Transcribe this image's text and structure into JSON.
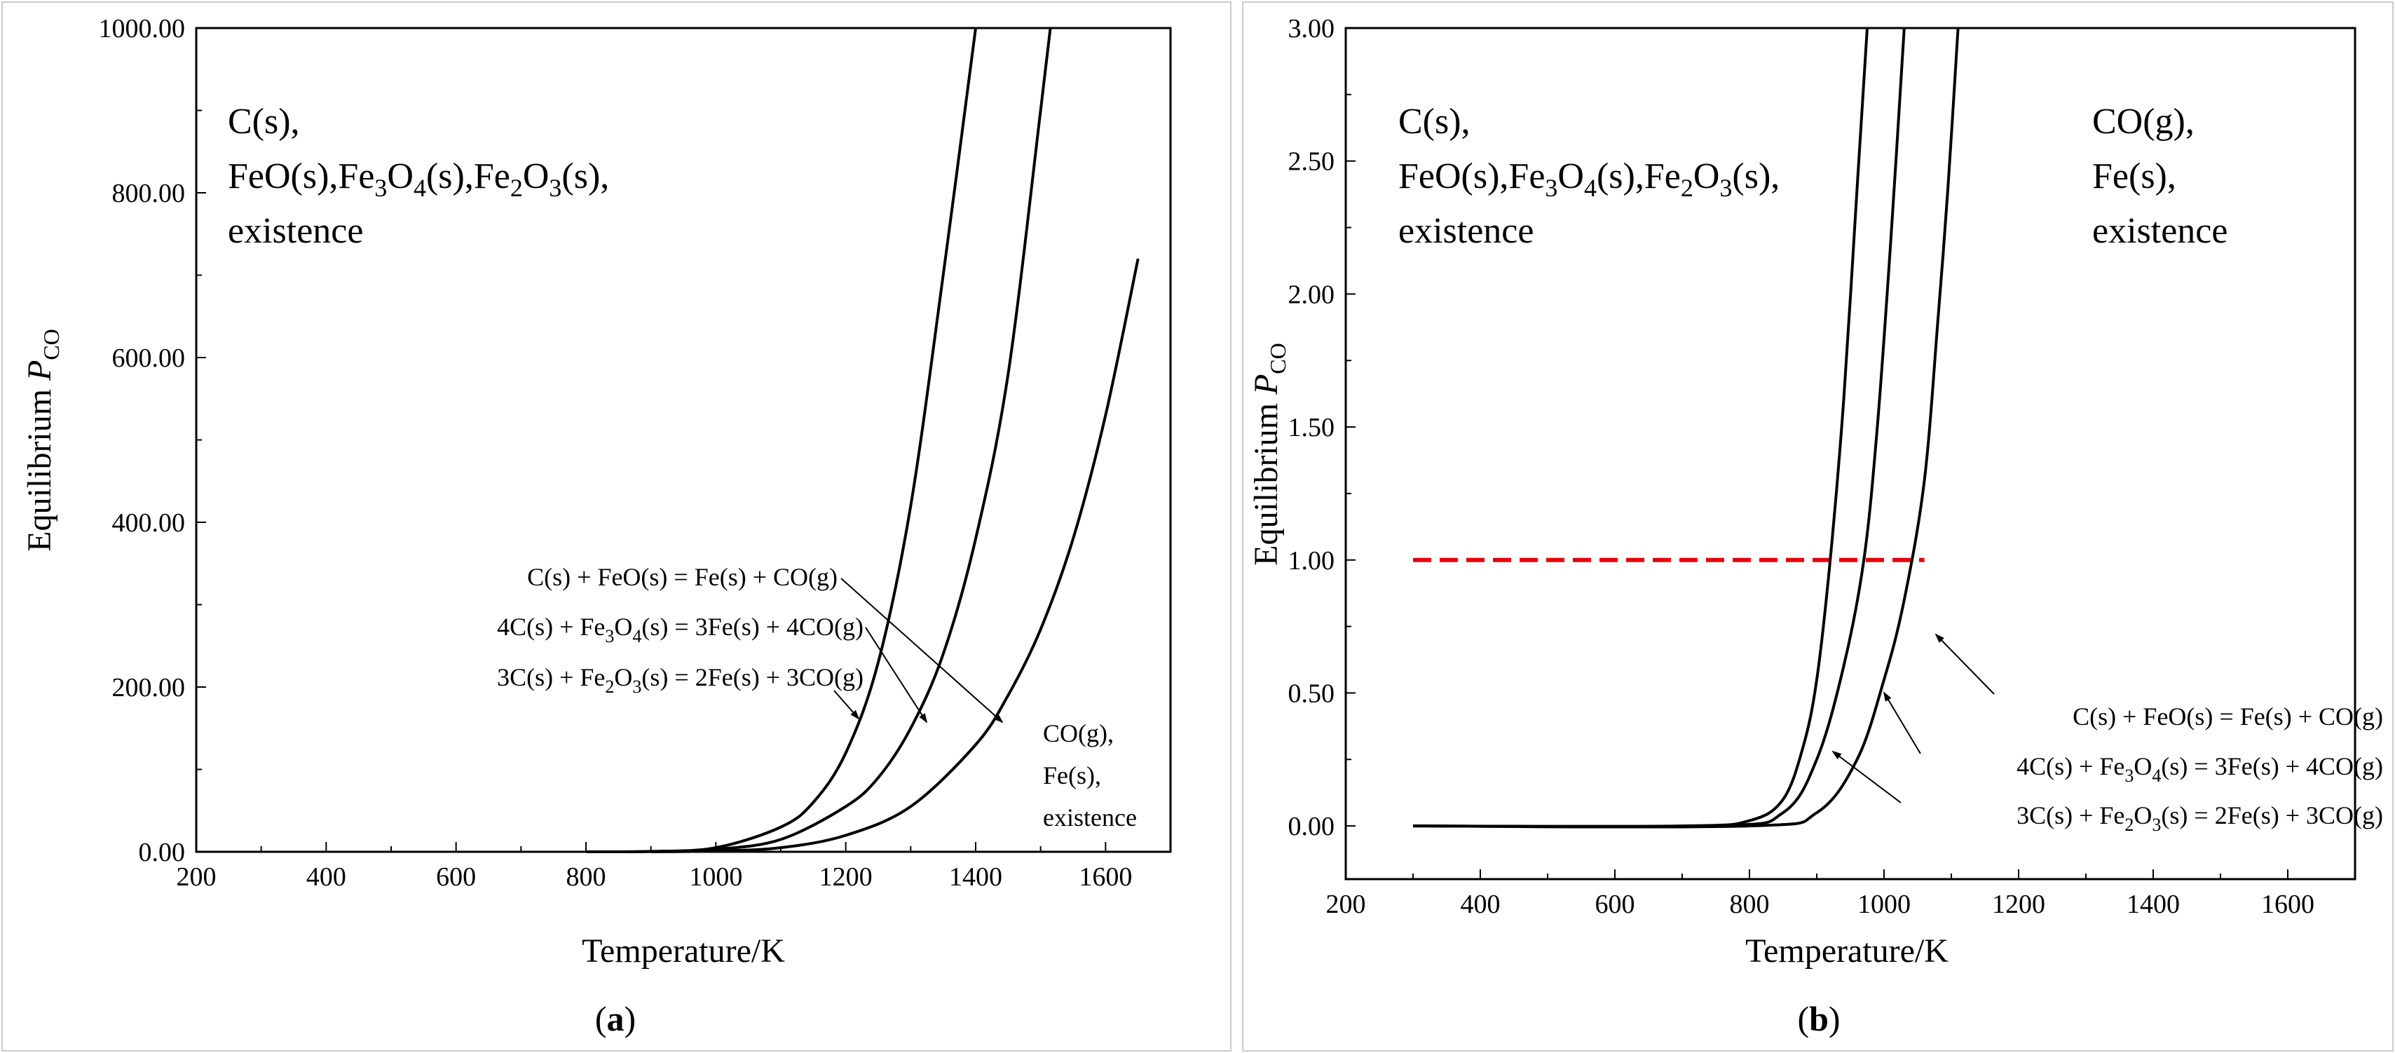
{
  "figure": {
    "panels": [
      {
        "id": "a",
        "caption": {
          "open": "(",
          "letter": "a",
          "close": ")"
        },
        "xlabel": "Temperature/K",
        "ylabel": {
          "prefix": "Equilibrium ",
          "var": "P",
          "sub": "CO"
        },
        "region_low": {
          "line1": "C(s),",
          "line2_parts": [
            "FeO(s),Fe",
            "3",
            "O",
            "4",
            "(s),Fe",
            "2",
            "O",
            "3",
            "(s),"
          ],
          "line3": "existence"
        },
        "region_high": {
          "line1": "CO(g),",
          "line2": "Fe(s),",
          "line3": "existence"
        },
        "equations": [
          {
            "parts": [
              "C(s) + FeO(s) = Fe(s) + CO(g)"
            ]
          },
          {
            "parts": [
              "4C(s) + Fe",
              "3",
              "O",
              "4",
              "(s) = 3Fe(s) + 4CO(g)"
            ]
          },
          {
            "parts": [
              "3C(s) + Fe",
              "2",
              "O",
              "3",
              "(s) = 2Fe(s) + 3CO(g)"
            ]
          }
        ]
      },
      {
        "id": "b",
        "caption": {
          "open": "(",
          "letter": "b",
          "close": ")"
        },
        "xlabel": "Temperature/K",
        "ylabel": {
          "prefix": "Equilibrium ",
          "var": "P",
          "sub": "CO"
        },
        "region_low": {
          "line1": "C(s),",
          "line2_parts": [
            "FeO(s),Fe",
            "3",
            "O",
            "4",
            "(s),Fe",
            "2",
            "O",
            "3",
            "(s),"
          ],
          "line3": "existence"
        },
        "region_high": {
          "line1": "CO(g),",
          "line2": "Fe(s),",
          "line3": "existence"
        },
        "equations": [
          {
            "parts": [
              "C(s) + FeO(s) = Fe(s) + CO(g)"
            ]
          },
          {
            "parts": [
              "4C(s) + Fe",
              "3",
              "O",
              "4",
              "(s) = 3Fe(s) + 4CO(g)"
            ]
          },
          {
            "parts": [
              "3C(s) + Fe",
              "2",
              "O",
              "3",
              "(s) = 2Fe(s) + 3CO(g)"
            ]
          }
        ]
      }
    ]
  },
  "colors": {
    "line": "#000000",
    "reference": "#e8000b",
    "frame": "#cccccc"
  },
  "chart_data": [
    {
      "type": "line",
      "panel": "a",
      "xlim": [
        200,
        1700
      ],
      "ylim": [
        0,
        1000
      ],
      "x_ticks": [
        200,
        400,
        600,
        800,
        1000,
        1200,
        1400,
        1600
      ],
      "x_tick_labels": [
        "200",
        "400",
        "600",
        "800",
        "1000",
        "1200",
        "1400",
        "1600"
      ],
      "y_ticks": [
        0,
        200,
        400,
        600,
        800,
        1000
      ],
      "y_tick_labels": [
        "0.00",
        "200.00",
        "400.00",
        "600.00",
        "800.00",
        "1000.00"
      ],
      "series": [
        {
          "name": "3C(s) + Fe2O3(s) = 2Fe(s) + 3CO(g)",
          "x": [
            800,
            900,
            1000,
            1100,
            1150,
            1200,
            1250,
            1300,
            1350,
            1400
          ],
          "y": [
            0,
            0.5,
            5,
            30,
            60,
            120,
            230,
            420,
            700,
            1000
          ]
        },
        {
          "name": "4C(s) + Fe3O4(s) = 3Fe(s) + 4CO(g)",
          "x": [
            800,
            900,
            1000,
            1100,
            1200,
            1250,
            1300,
            1350,
            1400,
            1450,
            1500,
            1515
          ],
          "y": [
            0,
            0.3,
            3,
            15,
            55,
            90,
            150,
            240,
            380,
            580,
            900,
            1000
          ]
        },
        {
          "name": "C(s) + FeO(s) = Fe(s) + CO(g)",
          "x": [
            900,
            1000,
            1100,
            1200,
            1300,
            1400,
            1450,
            1500,
            1550,
            1600,
            1650
          ],
          "y": [
            0,
            1,
            5,
            20,
            55,
            130,
            190,
            270,
            380,
            530,
            720
          ]
        }
      ]
    },
    {
      "type": "line",
      "panel": "b",
      "xlim": [
        200,
        1700
      ],
      "ylim": [
        -0.2,
        3.0
      ],
      "x_ticks": [
        200,
        400,
        600,
        800,
        1000,
        1200,
        1400,
        1600
      ],
      "x_tick_labels": [
        "200",
        "400",
        "600",
        "800",
        "1000",
        "1200",
        "1400",
        "1600"
      ],
      "y_ticks": [
        0,
        0.5,
        1.0,
        1.5,
        2.0,
        2.5,
        3.0
      ],
      "y_tick_labels": [
        "0.00",
        "0.50",
        "1.00",
        "1.50",
        "2.00",
        "2.50",
        "3.00"
      ],
      "reference_line": {
        "y": 1.0,
        "x": [
          300,
          1060
        ],
        "style": "dashed"
      },
      "series": [
        {
          "name": "3C(s) + Fe2O3(s) = 2Fe(s) + 3CO(g)",
          "x": [
            300,
            700,
            800,
            850,
            880,
            900,
            920,
            940,
            960,
            975
          ],
          "y": [
            0,
            0,
            0.02,
            0.1,
            0.3,
            0.55,
            1.0,
            1.6,
            2.4,
            3.0
          ]
        },
        {
          "name": "4C(s) + Fe3O4(s) = 3Fe(s) + 4CO(g)",
          "x": [
            300,
            750,
            850,
            900,
            940,
            970,
            990,
            1010,
            1030
          ],
          "y": [
            0,
            0,
            0.05,
            0.25,
            0.6,
            1.0,
            1.5,
            2.2,
            3.0
          ]
        },
        {
          "name": "C(s) + FeO(s) = Fe(s) + CO(g)",
          "x": [
            300,
            800,
            900,
            960,
            1000,
            1030,
            1060,
            1080,
            1095,
            1110
          ],
          "y": [
            0,
            0,
            0.05,
            0.25,
            0.55,
            0.85,
            1.3,
            1.9,
            2.4,
            3.0
          ]
        }
      ]
    }
  ]
}
